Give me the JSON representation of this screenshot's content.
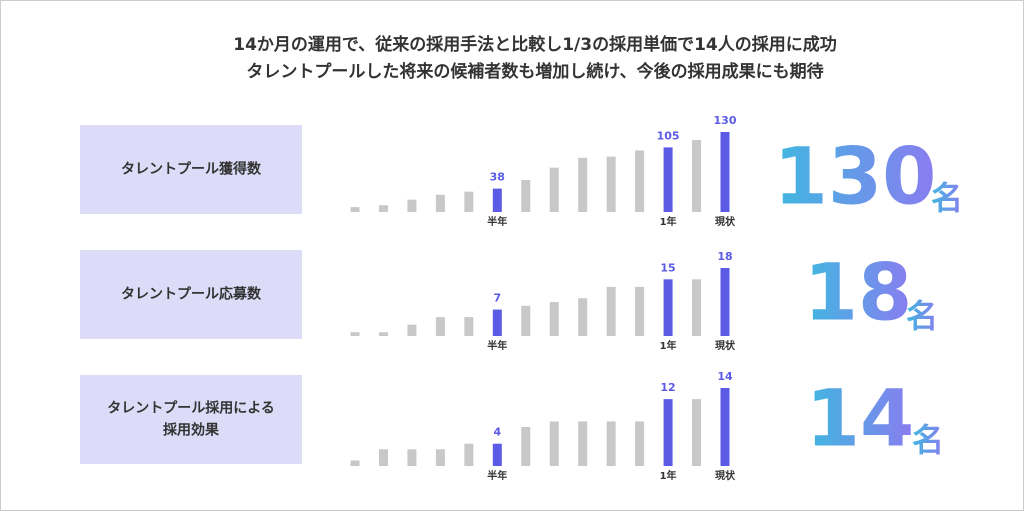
{
  "title_lines": [
    "14か月の運用で、従来の採用手法と比較し1/3の採用単価で14人の採用に成功",
    "タレントプールした将来の候補者数も増加し続け、今後の採用成果にも期待"
  ],
  "chart_data": [
    {
      "type": "bar",
      "label_lines": [
        "タレントプール獲得数"
      ],
      "categories": [
        null,
        null,
        null,
        null,
        null,
        "半年",
        null,
        null,
        null,
        null,
        null,
        "1年",
        null,
        "現状"
      ],
      "values": [
        8,
        11,
        20,
        28,
        33,
        38,
        52,
        72,
        88,
        90,
        100,
        105,
        117,
        130
      ],
      "ylim": [
        0,
        130
      ],
      "color": "#c8c8c8",
      "highlight_color": "#5b5be6",
      "big_value": 130,
      "unit": "名"
    },
    {
      "type": "bar",
      "label_lines": [
        "タレントプール応募数"
      ],
      "categories": [
        null,
        null,
        null,
        null,
        null,
        "半年",
        null,
        null,
        null,
        null,
        null,
        "1年",
        null,
        "現状"
      ],
      "values": [
        1,
        1,
        3,
        5,
        5,
        7,
        8,
        9,
        10,
        13,
        13,
        15,
        15,
        18
      ],
      "ylim": [
        0,
        18
      ],
      "color": "#c8c8c8",
      "highlight_color": "#5b5be6",
      "big_value": 18,
      "unit": "名"
    },
    {
      "type": "bar",
      "label_lines": [
        "タレントプール採用による",
        "採用効果"
      ],
      "categories": [
        null,
        null,
        null,
        null,
        null,
        "半年",
        null,
        null,
        null,
        null,
        null,
        "1年",
        null,
        "現状"
      ],
      "values": [
        1,
        3,
        3,
        3,
        4,
        4,
        7,
        8,
        8,
        8,
        8,
        12,
        12,
        14
      ],
      "ylim": [
        0,
        14
      ],
      "color": "#c8c8c8",
      "highlight_color": "#5b5be6",
      "big_value": 14,
      "unit": "名"
    }
  ]
}
